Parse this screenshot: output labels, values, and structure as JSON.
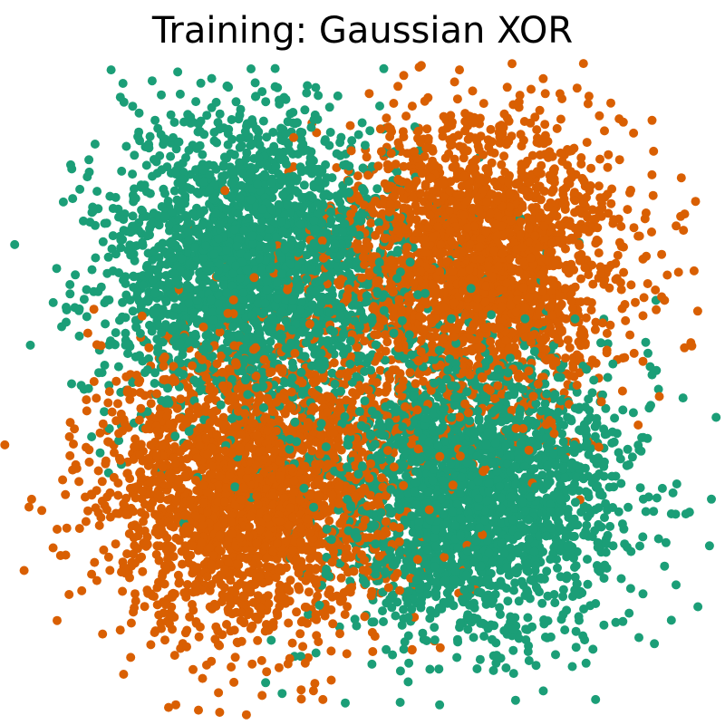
{
  "chart_data": {
    "type": "scatter",
    "title": "Training: Gaussian XOR",
    "xlabel": "",
    "ylabel": "",
    "axes_visible": false,
    "grid": false,
    "legend": "none",
    "xlim": [
      -4.2,
      4.2
    ],
    "ylim": [
      -4.2,
      4.2
    ],
    "colors": {
      "class_0": "#1b9e77",
      "class_1": "#d95f02"
    },
    "series": [
      {
        "class": 0,
        "color": "#1b9e77",
        "cluster_centers": [
          [
            -1.5,
            1.5
          ],
          [
            1.5,
            -1.5
          ]
        ],
        "cluster_std": 1.0,
        "points_per_cluster": 2500
      },
      {
        "class": 1,
        "color": "#d95f02",
        "cluster_centers": [
          [
            1.5,
            1.5
          ],
          [
            -1.5,
            -1.5
          ]
        ],
        "cluster_std": 1.0,
        "points_per_cluster": 2500
      }
    ]
  }
}
